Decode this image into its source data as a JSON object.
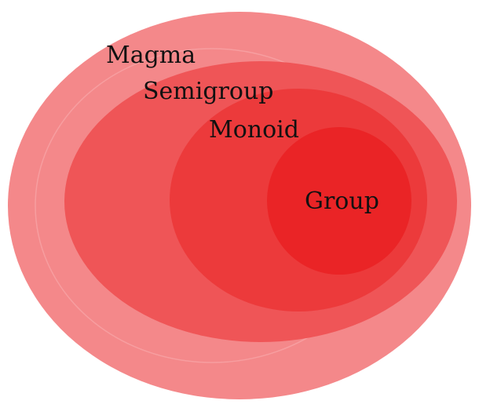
{
  "diagram": {
    "sets": [
      {
        "name": "Magma",
        "color": "#f4888a"
      },
      {
        "name": "Semigroup",
        "color": "#ef5557"
      },
      {
        "name": "Monoid",
        "color": "#ec3a3b"
      },
      {
        "name": "Group",
        "color": "#ea2426"
      }
    ]
  }
}
